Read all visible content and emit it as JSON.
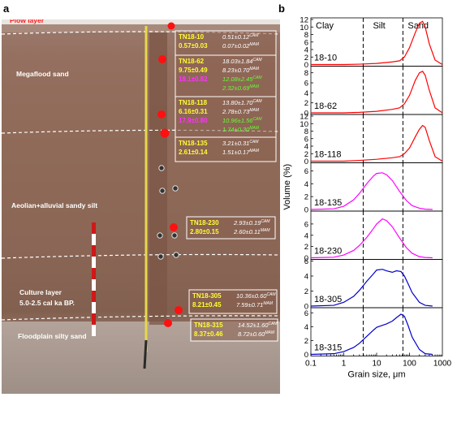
{
  "panels": {
    "a": "a",
    "b": "b"
  },
  "photo": {
    "layers": [
      {
        "label": "Plow layer",
        "color": "#ff2020"
      },
      {
        "label": "Megaflood sand",
        "color": "#ffffff"
      },
      {
        "label": "Aeolian+alluvial sandy silt",
        "color": "#ffffff"
      },
      {
        "label": "Culture layer",
        "color": "#ffffff"
      },
      {
        "label": "5.0-2.5 cal ka BP.",
        "color": "#ffffff"
      },
      {
        "label": "Floodplain silty sand",
        "color": "#ffffff"
      }
    ],
    "samples": [
      {
        "id": "TN18-10",
        "q1": "0.57±0.03",
        "lines": [
          {
            "v": "0.51±0.12",
            "s": "CAM",
            "c": "#ffffff"
          },
          {
            "v": "0.07±0.02",
            "s": "MAM",
            "c": "#ffffff"
          }
        ]
      },
      {
        "id": "TN18-62",
        "q1": "9.75±0.49",
        "q2": "18.1±0.82",
        "lines": [
          {
            "v": "18.03±1.84",
            "s": "CAM",
            "c": "#ffffff"
          },
          {
            "v": "8.23±0.70",
            "s": "MAM",
            "c": "#ffffff"
          },
          {
            "v": "12.08±2.45",
            "s": "CAM",
            "c": "#66ff33"
          },
          {
            "v": "2.32±0.69",
            "s": "MAM",
            "c": "#66ff33"
          }
        ]
      },
      {
        "id": "TN18-118",
        "q1": "6.16±0.31",
        "q2": "17.9±0.80",
        "lines": [
          {
            "v": "13.80±1.70",
            "s": "CAM",
            "c": "#ffffff"
          },
          {
            "v": "2.78±0.73",
            "s": "MAM",
            "c": "#ffffff"
          },
          {
            "v": "10.96±1.56",
            "s": "CAM",
            "c": "#66ff33"
          },
          {
            "v": "1.74±0.30",
            "s": "MAM",
            "c": "#66ff33"
          }
        ]
      },
      {
        "id": "TN18-135",
        "q1": "2.61±0.14",
        "lines": [
          {
            "v": "3.21±0.31",
            "s": "CAM",
            "c": "#ffffff"
          },
          {
            "v": "1.51±0.17",
            "s": "MAM",
            "c": "#ffffff"
          }
        ]
      },
      {
        "id": "TN18-230",
        "q1": "2.80±0.15",
        "lines": [
          {
            "v": "2.93±0.19",
            "s": "CAM",
            "c": "#ffffff"
          },
          {
            "v": "2.60±0.11",
            "s": "MAM",
            "c": "#ffffff"
          }
        ]
      },
      {
        "id": "TN18-305",
        "q1": "8.21±0.45",
        "lines": [
          {
            "v": "10.36±0.60",
            "s": "CAM",
            "c": "#ffffff"
          },
          {
            "v": "7.59±0.71",
            "s": "MAM",
            "c": "#ffffff"
          }
        ]
      },
      {
        "id": "TN18-315",
        "q1": "8.37±0.46",
        "lines": [
          {
            "v": "14.52±1.60",
            "s": "CAM",
            "c": "#ffffff"
          },
          {
            "v": "8.72±0.60",
            "s": "MAM",
            "c": "#ffffff"
          }
        ]
      }
    ]
  },
  "chart_data": {
    "type": "line",
    "xlabel": "Grain size, μm",
    "ylabel": "Volume (%)",
    "xscale": "log",
    "xlim": [
      0.1,
      1000
    ],
    "xticks": [
      0.1,
      1,
      10,
      100,
      1000
    ],
    "xtick_labels": [
      "0.1",
      "1",
      "10",
      "100",
      "1000"
    ],
    "boundaries": [
      3.9,
      63
    ],
    "zones": [
      "Clay",
      "Silt",
      "Sand"
    ],
    "series": [
      {
        "name": "18-10",
        "color": "#ff0000",
        "ylim": [
          0,
          12
        ],
        "yticks": [
          0,
          2,
          4,
          6,
          8,
          10,
          12
        ],
        "x": [
          0.1,
          1,
          3,
          10,
          30,
          50,
          70,
          100,
          150,
          200,
          250,
          300,
          400,
          600,
          1000
        ],
        "y": [
          0,
          0,
          0.1,
          0.3,
          0.7,
          1.0,
          2.0,
          4.5,
          8.5,
          11.0,
          11.5,
          10.0,
          5.5,
          1.2,
          0
        ]
      },
      {
        "name": "18-62",
        "color": "#ff0000",
        "ylim": [
          0,
          9
        ],
        "yticks": [
          0,
          2,
          4,
          6,
          8
        ],
        "x": [
          0.1,
          1,
          3,
          10,
          30,
          50,
          70,
          100,
          150,
          200,
          250,
          300,
          400,
          600,
          1000
        ],
        "y": [
          0,
          0,
          0.1,
          0.3,
          0.7,
          1.0,
          1.8,
          3.5,
          6.5,
          8.0,
          8.3,
          7.5,
          4.5,
          1.0,
          0
        ]
      },
      {
        "name": "18-118",
        "color": "#ff0000",
        "ylim": [
          0,
          12
        ],
        "yticks": [
          0,
          2,
          4,
          6,
          8,
          10,
          12
        ],
        "x": [
          0.1,
          1,
          3,
          10,
          30,
          50,
          70,
          100,
          150,
          200,
          250,
          300,
          400,
          600,
          1000
        ],
        "y": [
          0,
          0,
          0.2,
          0.5,
          0.9,
          1.2,
          2.0,
          3.5,
          6.5,
          8.5,
          9.5,
          9.0,
          5.5,
          1.2,
          0
        ]
      },
      {
        "name": "18-135",
        "color": "#ff00ff",
        "ylim": [
          0,
          7
        ],
        "yticks": [
          0,
          2,
          4,
          6
        ],
        "x": [
          0.1,
          0.5,
          1,
          2,
          3,
          5,
          8,
          10,
          15,
          20,
          30,
          50,
          80,
          120,
          200,
          300,
          500
        ],
        "y": [
          0,
          0.1,
          0.5,
          1.5,
          2.5,
          4.0,
          5.2,
          5.6,
          5.7,
          5.4,
          4.5,
          2.8,
          1.4,
          0.6,
          0.2,
          0.05,
          0
        ]
      },
      {
        "name": "18-230",
        "color": "#ff00ff",
        "ylim": [
          0,
          8
        ],
        "yticks": [
          0,
          2,
          4,
          6
        ],
        "x": [
          0.1,
          0.5,
          1,
          2,
          3,
          5,
          8,
          10,
          15,
          20,
          30,
          50,
          80,
          120,
          200,
          300,
          500
        ],
        "y": [
          0,
          0.1,
          0.5,
          1.3,
          2.2,
          3.6,
          5.2,
          6.0,
          6.9,
          6.6,
          5.5,
          3.5,
          1.8,
          0.8,
          0.2,
          0.05,
          0
        ]
      },
      {
        "name": "18-305",
        "color": "#0000cc",
        "ylim": [
          0,
          6
        ],
        "yticks": [
          0,
          2,
          4,
          6
        ],
        "x": [
          0.1,
          0.5,
          1,
          2,
          3,
          5,
          8,
          10,
          15,
          20,
          30,
          40,
          55,
          70,
          90,
          120,
          200,
          300,
          500
        ],
        "y": [
          0,
          0.1,
          0.5,
          1.3,
          2.1,
          3.3,
          4.3,
          4.8,
          4.9,
          4.7,
          4.5,
          4.7,
          4.6,
          4.0,
          3.0,
          1.8,
          0.5,
          0.1,
          0
        ]
      },
      {
        "name": "18-315",
        "color": "#0000cc",
        "ylim": [
          0,
          6.5
        ],
        "yticks": [
          0,
          2,
          4,
          6
        ],
        "x": [
          0.1,
          0.5,
          1,
          2,
          3,
          5,
          8,
          10,
          15,
          20,
          30,
          40,
          55,
          70,
          90,
          120,
          200,
          300,
          500
        ],
        "y": [
          0,
          0.1,
          0.4,
          1.0,
          1.6,
          2.6,
          3.5,
          3.9,
          4.2,
          4.4,
          4.8,
          5.3,
          5.8,
          5.5,
          4.2,
          2.5,
          0.7,
          0.1,
          0
        ]
      }
    ]
  }
}
